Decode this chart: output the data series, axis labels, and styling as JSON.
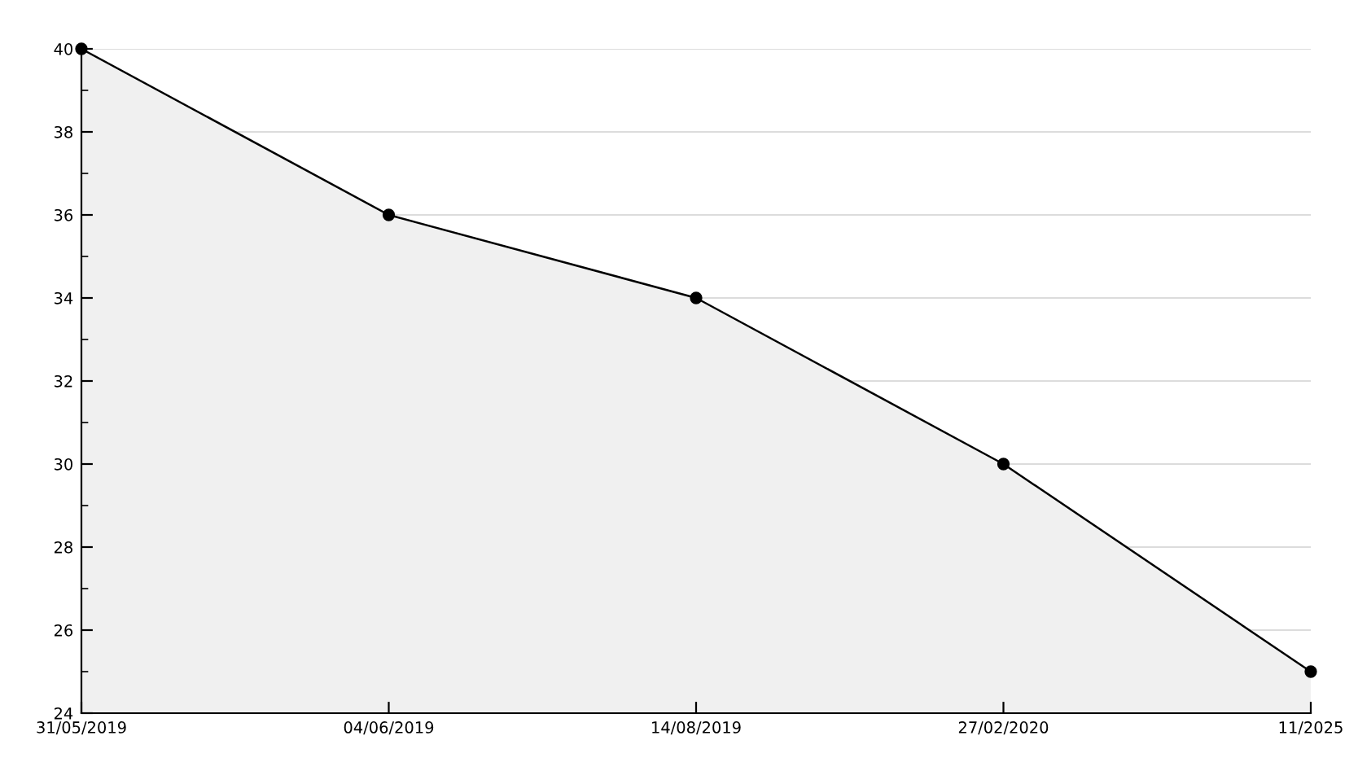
{
  "chart_data": {
    "type": "area",
    "categories": [
      "31/05/2019",
      "04/06/2019",
      "14/08/2019",
      "27/02/2020",
      "11/2025"
    ],
    "series": [
      {
        "color": "#000000",
        "values": [
          40,
          36,
          34,
          30,
          25
        ]
      }
    ],
    "ylim": [
      24,
      40
    ],
    "yticks": [
      24,
      {
        "value": 25,
        "label": null
      },
      26,
      {
        "value": 27,
        "label": null
      },
      28,
      {
        "value": 29,
        "label": null
      },
      30,
      {
        "value": 31,
        "label": null
      },
      32,
      {
        "value": 33,
        "label": null
      },
      34,
      {
        "value": 35,
        "label": null
      },
      36,
      {
        "value": 37,
        "label": null
      },
      38,
      {
        "value": 39,
        "label": null
      },
      40
    ],
    "grid": "y",
    "marker": "circle",
    "line_style": "solid",
    "legend": false
  }
}
